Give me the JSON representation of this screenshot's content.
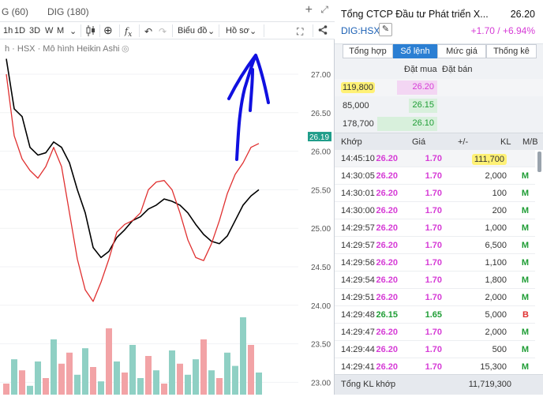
{
  "chart_tabs": [
    {
      "label": "G (60)"
    },
    {
      "label": "DIG (180)"
    }
  ],
  "toolbar": {
    "periods": [
      "1h",
      "1D",
      "3D",
      "W",
      "M"
    ],
    "chart_type_label": "Biểu đồ",
    "profile_label": "Hồ sơ"
  },
  "chart": {
    "title": "h · HSX · Mô hình Heikin Ashi",
    "last_price_tag": "26.19",
    "y_ticks": [
      "27.00",
      "26.50",
      "26.00",
      "25.50",
      "25.00",
      "24.50",
      "24.00",
      "23.50",
      "23.00"
    ]
  },
  "chart_data": {
    "type": "line",
    "ylim": [
      22.95,
      27.25
    ],
    "series": [
      {
        "values": [
          27.2,
          26.55,
          26.45,
          26.05,
          25.95,
          25.98,
          26.12,
          26.05,
          25.85,
          25.5,
          25.2,
          24.75,
          24.62,
          24.7,
          24.88,
          24.98,
          25.1,
          25.15,
          25.25,
          25.3,
          25.38,
          25.35,
          25.3,
          25.2,
          25.05,
          24.92,
          24.83,
          24.8,
          24.9,
          25.1,
          25.3,
          25.42,
          25.5
        ],
        "color": "#000000"
      },
      {
        "values": [
          27.0,
          26.2,
          25.9,
          25.75,
          25.65,
          25.8,
          26.05,
          25.8,
          25.2,
          24.6,
          24.2,
          24.05,
          24.3,
          24.6,
          24.95,
          25.05,
          25.1,
          25.2,
          25.5,
          25.6,
          25.62,
          25.5,
          25.2,
          24.85,
          24.62,
          24.58,
          24.8,
          25.1,
          25.45,
          25.7,
          25.85,
          26.05,
          26.1
        ],
        "color": "#e03030"
      }
    ],
    "volume": [
      0.1,
      0.32,
      0.22,
      0.08,
      0.3,
      0.15,
      0.5,
      0.28,
      0.38,
      0.18,
      0.42,
      0.25,
      0.12,
      0.6,
      0.3,
      0.2,
      0.45,
      0.15,
      0.35,
      0.22,
      0.1,
      0.4,
      0.28,
      0.18,
      0.32,
      0.5,
      0.22,
      0.15,
      0.38,
      0.26,
      0.7,
      0.45,
      0.2
    ],
    "volume_up": [
      false,
      true,
      false,
      true,
      true,
      false,
      true,
      false,
      false,
      true,
      true,
      false,
      true,
      false,
      true,
      false,
      true,
      true,
      false,
      true,
      false,
      true,
      false,
      true,
      true,
      false,
      true,
      false,
      true,
      true,
      true,
      false,
      true
    ]
  },
  "quote": {
    "company": "Tổng CTCP Đầu tư Phát triển X...",
    "price": "26.20",
    "ticker": "DIG:HSX",
    "change": "+1.70 / +6.94%",
    "tabs": [
      "Tổng hợp",
      "Sổ lệnh",
      "Mức giá",
      "Thống kê"
    ],
    "active_tab": 1,
    "book_header": {
      "bid": "Đặt mua",
      "ask": "Đặt bán"
    },
    "book": [
      {
        "vol": "119,800",
        "price": "26.20",
        "color": "#d63bd6",
        "fill": 0.67,
        "bar": "#f3d6f3",
        "highlight": true
      },
      {
        "vol": "85,000",
        "price": "26.15",
        "color": "#1f9d35",
        "fill": 0.47,
        "bar": "#d8f0dc",
        "highlight": false
      },
      {
        "vol": "178,700",
        "price": "26.10",
        "color": "#1f9d35",
        "fill": 1.0,
        "bar": "#d8f0dc",
        "highlight": false
      }
    ],
    "trades_header": {
      "time": "Khớp",
      "price": "Giá",
      "chg": "+/-",
      "vol": "KL",
      "side": "M/B"
    },
    "trades": [
      {
        "time": "14:45:10",
        "price": "26.20",
        "chg": "1.70",
        "vol": "111,700",
        "side": "",
        "pc": "#d63bd6",
        "sc": "#1f9d35",
        "hl": true
      },
      {
        "time": "14:30:05",
        "price": "26.20",
        "chg": "1.70",
        "vol": "2,000",
        "side": "M",
        "pc": "#d63bd6",
        "sc": "#1f9d35",
        "hl": false
      },
      {
        "time": "14:30:01",
        "price": "26.20",
        "chg": "1.70",
        "vol": "100",
        "side": "M",
        "pc": "#d63bd6",
        "sc": "#1f9d35",
        "hl": false
      },
      {
        "time": "14:30:00",
        "price": "26.20",
        "chg": "1.70",
        "vol": "200",
        "side": "M",
        "pc": "#d63bd6",
        "sc": "#1f9d35",
        "hl": false
      },
      {
        "time": "14:29:57",
        "price": "26.20",
        "chg": "1.70",
        "vol": "1,000",
        "side": "M",
        "pc": "#d63bd6",
        "sc": "#1f9d35",
        "hl": false
      },
      {
        "time": "14:29:57",
        "price": "26.20",
        "chg": "1.70",
        "vol": "6,500",
        "side": "M",
        "pc": "#d63bd6",
        "sc": "#1f9d35",
        "hl": false
      },
      {
        "time": "14:29:56",
        "price": "26.20",
        "chg": "1.70",
        "vol": "1,100",
        "side": "M",
        "pc": "#d63bd6",
        "sc": "#1f9d35",
        "hl": false
      },
      {
        "time": "14:29:54",
        "price": "26.20",
        "chg": "1.70",
        "vol": "1,800",
        "side": "M",
        "pc": "#d63bd6",
        "sc": "#1f9d35",
        "hl": false
      },
      {
        "time": "14:29:51",
        "price": "26.20",
        "chg": "1.70",
        "vol": "2,000",
        "side": "M",
        "pc": "#d63bd6",
        "sc": "#1f9d35",
        "hl": false
      },
      {
        "time": "14:29:48",
        "price": "26.15",
        "chg": "1.65",
        "vol": "5,000",
        "side": "B",
        "pc": "#1f9d35",
        "sc": "#e03030",
        "hl": false
      },
      {
        "time": "14:29:47",
        "price": "26.20",
        "chg": "1.70",
        "vol": "2,000",
        "side": "M",
        "pc": "#d63bd6",
        "sc": "#1f9d35",
        "hl": false
      },
      {
        "time": "14:29:44",
        "price": "26.20",
        "chg": "1.70",
        "vol": "500",
        "side": "M",
        "pc": "#d63bd6",
        "sc": "#1f9d35",
        "hl": false
      },
      {
        "time": "14:29:41",
        "price": "26.20",
        "chg": "1.70",
        "vol": "15,300",
        "side": "M",
        "pc": "#d63bd6",
        "sc": "#1f9d35",
        "hl": false
      }
    ],
    "footer": {
      "label": "Tổng KL khớp",
      "value": "11,719,300"
    }
  },
  "colors": {
    "accent": "#2b7fd3",
    "ceiling": "#d63bd6",
    "up": "#1f9d35",
    "down": "#e03030",
    "annotation": "#1010e0"
  }
}
